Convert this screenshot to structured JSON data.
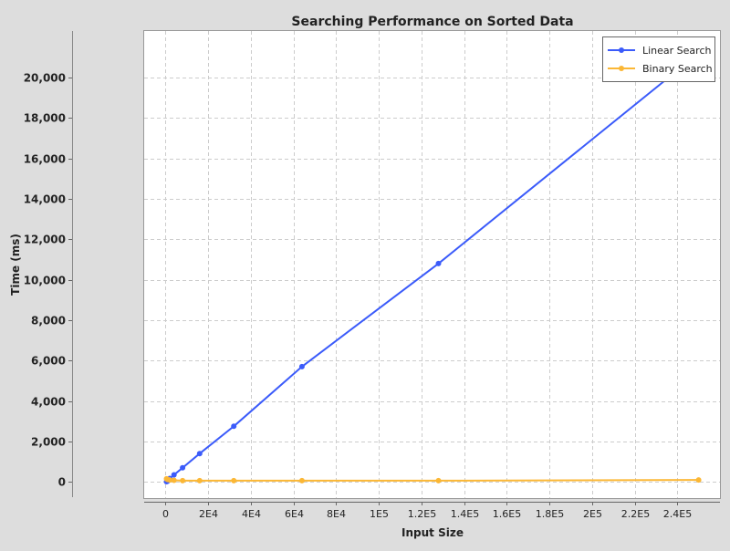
{
  "chart_data": {
    "type": "line",
    "title": "Searching Performance on Sorted Data",
    "xlabel": "Input Size",
    "ylabel": "Time (ms)",
    "xlim": [
      -10000,
      260000
    ],
    "ylim": [
      -800,
      22300
    ],
    "x_ticks": [
      0,
      20000,
      40000,
      60000,
      80000,
      100000,
      120000,
      140000,
      160000,
      180000,
      200000,
      220000,
      240000
    ],
    "x_tick_labels": [
      "0",
      "2E4",
      "4E4",
      "6E4",
      "8E4",
      "1E5",
      "1.2E5",
      "1.4E5",
      "1.6E5",
      "1.8E5",
      "2E5",
      "2.2E5",
      "2.4E5"
    ],
    "y_ticks": [
      0,
      2000,
      4000,
      6000,
      8000,
      10000,
      12000,
      14000,
      16000,
      18000,
      20000
    ],
    "y_tick_labels": [
      "0",
      "2,000",
      "4,000",
      "6,000",
      "8,000",
      "10,000",
      "12,000",
      "14,000",
      "16,000",
      "18,000",
      "20,000"
    ],
    "grid": true,
    "legend": "top-right",
    "series": [
      {
        "name": "Linear Search",
        "color": "#3b5bfa",
        "x": [
          500,
          1000,
          2000,
          4000,
          8000,
          16000,
          32000,
          64000,
          128000,
          250000
        ],
        "y": [
          10,
          40,
          170,
          350,
          700,
          1400,
          2750,
          5700,
          10800,
          21200
        ]
      },
      {
        "name": "Binary Search",
        "color": "#fbb735",
        "x": [
          500,
          1000,
          2000,
          4000,
          8000,
          16000,
          32000,
          64000,
          128000,
          250000
        ],
        "y": [
          150,
          120,
          100,
          80,
          60,
          60,
          60,
          60,
          60,
          100
        ]
      }
    ]
  }
}
